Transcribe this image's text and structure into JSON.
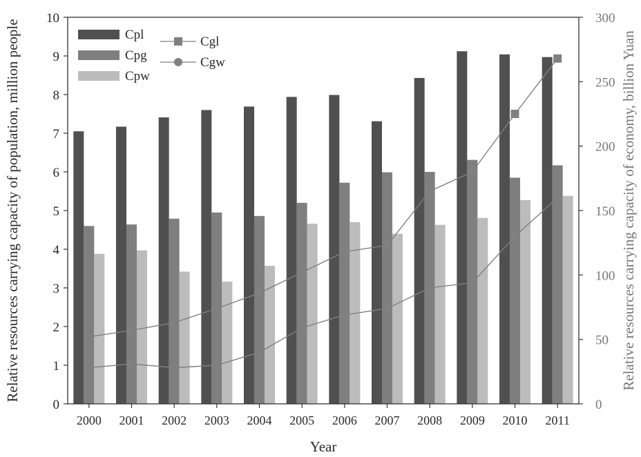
{
  "chart_data": {
    "type": "bar",
    "xlabel": "Year",
    "ylabel_left": "Relative resources carrying capacity of population, million people",
    "ylabel_right": "Relative resources carrying capacity of economy, billion Yuan",
    "ylim_left": [
      0,
      10
    ],
    "ylim_right": [
      0,
      300
    ],
    "y_ticks_left": [
      "0",
      "1",
      "2",
      "3",
      "4",
      "5",
      "6",
      "7",
      "8",
      "9",
      "10"
    ],
    "y_ticks_right": [
      "0",
      "50",
      "100",
      "150",
      "200",
      "250",
      "300"
    ],
    "categories": [
      "2000",
      "2001",
      "2002",
      "2003",
      "2004",
      "2005",
      "2006",
      "2007",
      "2008",
      "2009",
      "2010",
      "2011"
    ],
    "grid": false,
    "legend_position": "top-left",
    "bar_series": [
      {
        "name": "Cpl",
        "axis": "left",
        "color": "#505050",
        "values": [
          7.05,
          7.17,
          7.41,
          7.6,
          7.69,
          7.94,
          7.99,
          7.31,
          8.43,
          9.12,
          9.04,
          8.97
        ]
      },
      {
        "name": "Cpg",
        "axis": "left",
        "color": "#7f7f7f",
        "values": [
          4.6,
          4.64,
          4.79,
          4.95,
          4.86,
          5.2,
          5.72,
          5.99,
          6.0,
          6.31,
          5.85,
          6.17
        ]
      },
      {
        "name": "Cpw",
        "axis": "left",
        "color": "#bcbcbc",
        "values": [
          3.88,
          3.97,
          3.42,
          3.16,
          3.57,
          4.66,
          4.7,
          4.4,
          4.63,
          4.81,
          5.27,
          5.38
        ]
      }
    ],
    "line_series": [
      {
        "name": "Cgl",
        "axis": "right",
        "marker": "square",
        "color": "#808080",
        "values": [
          52,
          57,
          63,
          74,
          86,
          102,
          118,
          123,
          165,
          180,
          225,
          268
        ]
      },
      {
        "name": "Cgw",
        "axis": "right",
        "marker": "circle",
        "color": "#808080",
        "values": [
          28,
          31,
          28,
          30,
          40,
          59,
          69,
          74,
          90,
          94,
          130,
          160
        ]
      }
    ]
  }
}
